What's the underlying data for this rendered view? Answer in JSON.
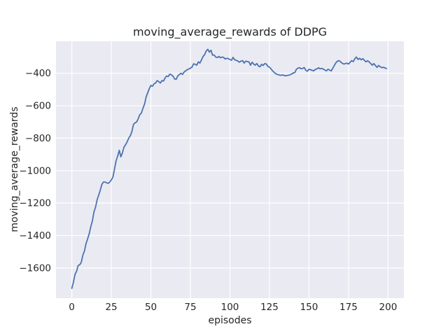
{
  "chart_data": {
    "type": "line",
    "title": "moving_average_rewards of DDPG",
    "xlabel": "episodes",
    "ylabel": "moving_average_rewards",
    "x_ticks": [
      0,
      25,
      50,
      75,
      100,
      125,
      150,
      175,
      200
    ],
    "y_ticks": [
      -400,
      -600,
      -800,
      -1000,
      -1200,
      -1400,
      -1600
    ],
    "xlim": [
      -10,
      210
    ],
    "ylim": [
      -1786,
      -203
    ],
    "grid": true,
    "legend": false,
    "style": "seaborn-darkgrid",
    "colors": {
      "line": "#4c72b0",
      "plot_bg": "#eaeaf2",
      "grid": "#ffffff",
      "text": "#262626",
      "figure_bg": "#ffffff"
    },
    "series": [
      {
        "name": "moving_average_rewards",
        "x_start": 0,
        "x_step": 1,
        "y": [
          -1725,
          -1690,
          -1640,
          -1620,
          -1585,
          -1580,
          -1565,
          -1520,
          -1495,
          -1450,
          -1420,
          -1390,
          -1345,
          -1310,
          -1255,
          -1225,
          -1180,
          -1150,
          -1120,
          -1085,
          -1070,
          -1070,
          -1075,
          -1078,
          -1070,
          -1057,
          -1040,
          -990,
          -940,
          -910,
          -875,
          -915,
          -890,
          -855,
          -840,
          -822,
          -800,
          -785,
          -760,
          -715,
          -705,
          -700,
          -680,
          -655,
          -645,
          -615,
          -590,
          -545,
          -520,
          -495,
          -475,
          -480,
          -465,
          -460,
          -445,
          -452,
          -460,
          -445,
          -448,
          -428,
          -417,
          -420,
          -405,
          -410,
          -418,
          -435,
          -437,
          -417,
          -408,
          -400,
          -407,
          -393,
          -385,
          -378,
          -374,
          -368,
          -362,
          -342,
          -345,
          -350,
          -330,
          -337,
          -318,
          -296,
          -285,
          -262,
          -252,
          -270,
          -258,
          -288,
          -287,
          -300,
          -303,
          -296,
          -305,
          -300,
          -302,
          -312,
          -308,
          -310,
          -315,
          -320,
          -302,
          -317,
          -320,
          -325,
          -332,
          -325,
          -322,
          -337,
          -325,
          -328,
          -330,
          -350,
          -332,
          -343,
          -350,
          -340,
          -355,
          -360,
          -345,
          -352,
          -340,
          -343,
          -358,
          -362,
          -374,
          -385,
          -395,
          -403,
          -407,
          -410,
          -413,
          -410,
          -412,
          -416,
          -414,
          -412,
          -409,
          -405,
          -398,
          -396,
          -376,
          -368,
          -365,
          -372,
          -370,
          -365,
          -382,
          -387,
          -375,
          -378,
          -382,
          -385,
          -376,
          -373,
          -366,
          -373,
          -370,
          -374,
          -380,
          -385,
          -375,
          -380,
          -386,
          -370,
          -352,
          -335,
          -325,
          -322,
          -330,
          -338,
          -343,
          -340,
          -338,
          -343,
          -332,
          -322,
          -328,
          -310,
          -300,
          -315,
          -308,
          -317,
          -310,
          -320,
          -330,
          -323,
          -330,
          -340,
          -350,
          -340,
          -352,
          -364,
          -352,
          -360,
          -365,
          -363,
          -367,
          -371
        ]
      }
    ]
  }
}
